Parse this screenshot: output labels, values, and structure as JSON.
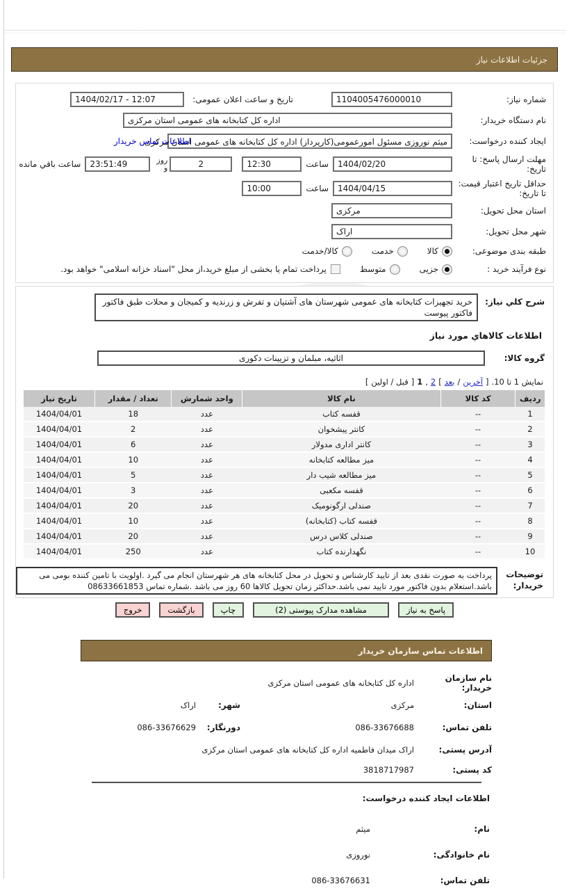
{
  "bars": {
    "details_title": "جزئیات اطلاعات نیاز",
    "contact_title": "اطلاعات تماس سازمان خریدار"
  },
  "form": {
    "need_number": {
      "label": "شماره نیاز:",
      "value": "1104005476000010"
    },
    "announce": {
      "label": "تاریخ و ساعت اعلان عمومی:",
      "value": "12:07 - 1404/02/17"
    },
    "buyer_org": {
      "label": "نام دستگاه خریدار:",
      "value": "اداره کل کتابخانه های عمومی استان مرکزی"
    },
    "creator": {
      "label": "ایجاد کننده درخواست:",
      "value": "میثم نوروزی مسئول امورعمومی(کارپرداز) اداره کل کتابخانه های عمومی استان مرکزی",
      "link": "اطلاعات تماس خریدار"
    },
    "deadline": {
      "label": "مهلت ارسال پاسخ: تا تاریخ:",
      "date": "1404/02/20",
      "hour_label": "ساعت",
      "time": "12:30",
      "days": "2",
      "days_label": "روز و",
      "remaining": "23:51:49",
      "remaining_label": "ساعت باقي مانده"
    },
    "price_validity": {
      "label": "حداقل تاریخ اعتبار قیمت: تا تاریخ:",
      "date": "1404/04/15",
      "hour_label": "ساعت",
      "time": "10:00"
    },
    "province": {
      "label": "استان محل تحویل:",
      "value": "مرکزی"
    },
    "city": {
      "label": "شهر محل تحویل:",
      "value": "اراک"
    },
    "category": {
      "label": "طبقه بندی موضوعی:",
      "options": [
        "کالا",
        "خدمت",
        "کالا/خدمت"
      ],
      "selected_index": 0
    },
    "process": {
      "label": "نوع فرآیند خرید :",
      "options": [
        "جزیی",
        "متوسط"
      ],
      "selected_index": 0,
      "checkbox_label": "پرداخت تمام یا بخشی از مبلغ خرید،از محل \"اسناد خزانه اسلامی\" خواهد بود."
    }
  },
  "need": {
    "desc_label": "شرح کلي نیاز:",
    "desc_value": "خرید تجهیزات کتابخانه های عمومی شهرستان های آشتیان و تفرش و زرندیه و کمیجان و محلات طبق فاکتور فاکتور پیوست",
    "goods_heading": "اطلاعات کالاهاي مورد نیاز",
    "group_label": "گروه کالا:",
    "group_value": "اثاثیه، مبلمان و تزیینات دکوری"
  },
  "pagination": {
    "prefix": "نمایش 1 تا 10.",
    "b1": "]",
    "last": "آخرین",
    "slash": "/",
    "next": "بعد",
    "b2": "[",
    "page2": "2",
    "comma": ",",
    "page1": "1",
    "b3": "]",
    "prev_first": "قبل / اولین",
    "b4": "["
  },
  "table": {
    "headers": [
      "ردیف",
      "کد کالا",
      "نام کالا",
      "واحد شمارش",
      "تعداد / مقدار",
      "تاریخ نیاز"
    ],
    "rows": [
      [
        "1",
        "--",
        "قفسه کتاب",
        "عدد",
        "18",
        "1404/04/01"
      ],
      [
        "2",
        "--",
        "کانتر پیشخوان",
        "عدد",
        "2",
        "1404/04/01"
      ],
      [
        "3",
        "--",
        "کانتر اداری مدولار",
        "عدد",
        "6",
        "1404/04/01"
      ],
      [
        "4",
        "--",
        "میز مطالعه کتابخانه",
        "عدد",
        "10",
        "1404/04/01"
      ],
      [
        "5",
        "--",
        "میز مطالعه شیب دار",
        "عدد",
        "5",
        "1404/04/01"
      ],
      [
        "6",
        "--",
        "قفسه مکعبی",
        "عدد",
        "3",
        "1404/04/01"
      ],
      [
        "7",
        "--",
        "صندلی ارگونومیک",
        "عدد",
        "20",
        "1404/04/01"
      ],
      [
        "8",
        "--",
        "قفسه کتاب (کتابخانه)",
        "عدد",
        "10",
        "1404/04/01"
      ],
      [
        "9",
        "--",
        "صندلی کلاس درس",
        "عدد",
        "20",
        "1404/04/01"
      ],
      [
        "10",
        "--",
        "نگهدارنده کتاب",
        "عدد",
        "250",
        "1404/04/01"
      ]
    ]
  },
  "notes": {
    "label": "توضیحات خریدار:",
    "value": "پرداخت به صورت نقدی بعد از تایید کارشناس و تحویل در محل کتابخانه های هر شهرستان انجام می گیرد .اولویت با تامین کننده بومی می باشد.استعلام بدون فاکتور مورد تایید نمی باشد.حداکثر زمان تحویل کالاها 60 روز می باشد .شماره تماس 08633661853"
  },
  "buttons": [
    {
      "label": "پاسخ به نیاز",
      "style": "green"
    },
    {
      "label": "مشاهده مدارک پیوستی (2)",
      "style": "green"
    },
    {
      "label": "چاپ",
      "style": "green"
    },
    {
      "label": "بازگشت",
      "style": "pink"
    },
    {
      "label": "خروج",
      "style": "pink"
    }
  ],
  "contact": {
    "org": {
      "label": "نام سازمان خریدار:",
      "value": "اداره کل کتابخانه های عمومی استان مرکزی"
    },
    "province": {
      "label": "استان:",
      "value": "مرکزی"
    },
    "city": {
      "label": "شهر:",
      "value": "اراک"
    },
    "phone": {
      "label": "تلفن تماس:",
      "value": "086-33676688"
    },
    "fax": {
      "label": "دورنگار:",
      "value": "086-33676629"
    },
    "address": {
      "label": "آدرس پستی:",
      "value": "اراک میدان فاطمیه اداره کل کتابخانه های عمومی استان مرکزی"
    },
    "postal_code": {
      "label": "کد پستی:",
      "value": "3818717987"
    }
  },
  "creator_info": {
    "heading": "اطلاعات ایجاد کننده درخواست:",
    "first_name": {
      "label": "نام:",
      "value": "میثم"
    },
    "last_name": {
      "label": "نام خانوادگی:",
      "value": "نوروزی"
    },
    "phone": {
      "label": "تلفن تماس:",
      "value": "086-33676631"
    }
  },
  "colors": {
    "header_bar": "#8d7343",
    "button_green": "#e2f4e0",
    "button_pink": "#f9d2d2",
    "link_blue": "#0000cc",
    "table_header_gray": "#c6c6c6"
  }
}
